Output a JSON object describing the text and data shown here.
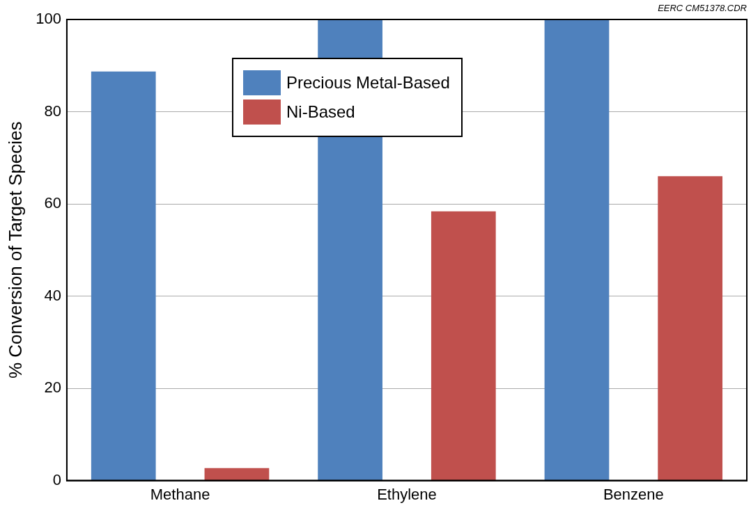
{
  "chart_data": {
    "type": "bar",
    "ylabel": "% Conversion of Target Species",
    "categories": [
      "Methane",
      "Ethylene",
      "Benzene"
    ],
    "series": [
      {
        "name": "Precious Metal-Based",
        "color": "#4f81bd",
        "values": [
          88.7,
          100,
          100
        ]
      },
      {
        "name": "Ni-Based",
        "color": "#c0504d",
        "values": [
          2.7,
          58.4,
          66.0
        ]
      }
    ],
    "ylim": [
      0,
      100
    ],
    "yticks": [
      0,
      20,
      40,
      60,
      80,
      100
    ],
    "grid": "y",
    "legend": "top",
    "annotations": [
      "EERC CM51378.CDR"
    ]
  }
}
